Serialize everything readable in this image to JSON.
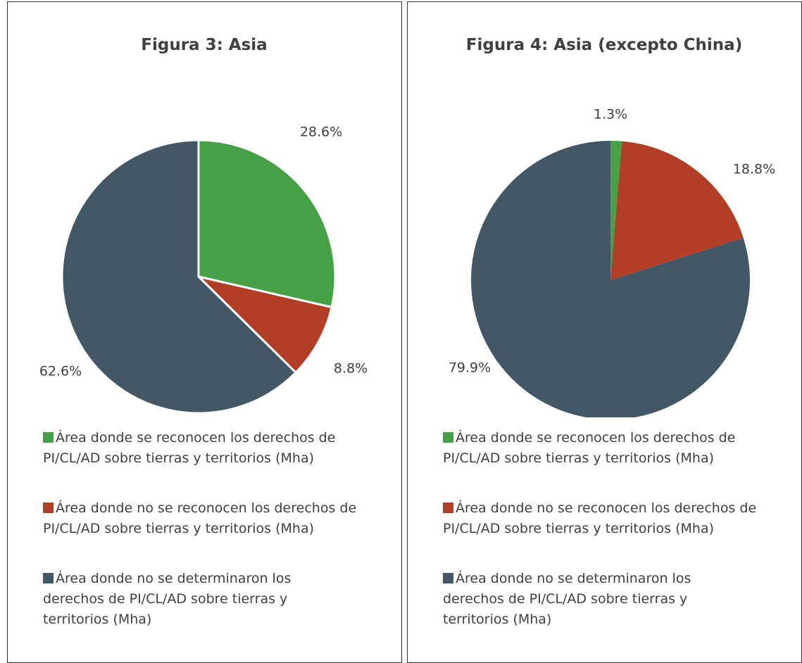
{
  "chart_data": [
    {
      "type": "pie",
      "title": "Figura 3: Asia",
      "categories": [
        "Área donde se reconocen los derechos de PI/CL/AD sobre tierras y territorios (Mha)",
        "Área donde no se reconocen los derechos de PI/CL/AD sobre tierras y territorios (Mha)",
        "Área donde no se determinaron los derechos de PI/CL/AD sobre tierras y territorios (Mha)"
      ],
      "values": [
        28.6,
        8.8,
        62.6
      ],
      "value_labels": [
        "28.6%",
        "8.8%",
        "62.6%"
      ],
      "colors": [
        "#46a046",
        "#b33e26",
        "#425866"
      ]
    },
    {
      "type": "pie",
      "title": "Figura 4: Asia (excepto China)",
      "categories": [
        "Área donde se reconocen los derechos de PI/CL/AD sobre tierras y territorios (Mha)",
        "Área donde no se reconocen los derechos de PI/CL/AD sobre tierras y territorios (Mha)",
        "Área donde no se determinaron los derechos de PI/CL/AD sobre tierras y territorios (Mha)"
      ],
      "values": [
        1.3,
        18.8,
        79.9
      ],
      "value_labels": [
        "1.3%",
        "18.8%",
        "79.9%"
      ],
      "colors": [
        "#46a046",
        "#b33e26",
        "#425866"
      ]
    }
  ]
}
